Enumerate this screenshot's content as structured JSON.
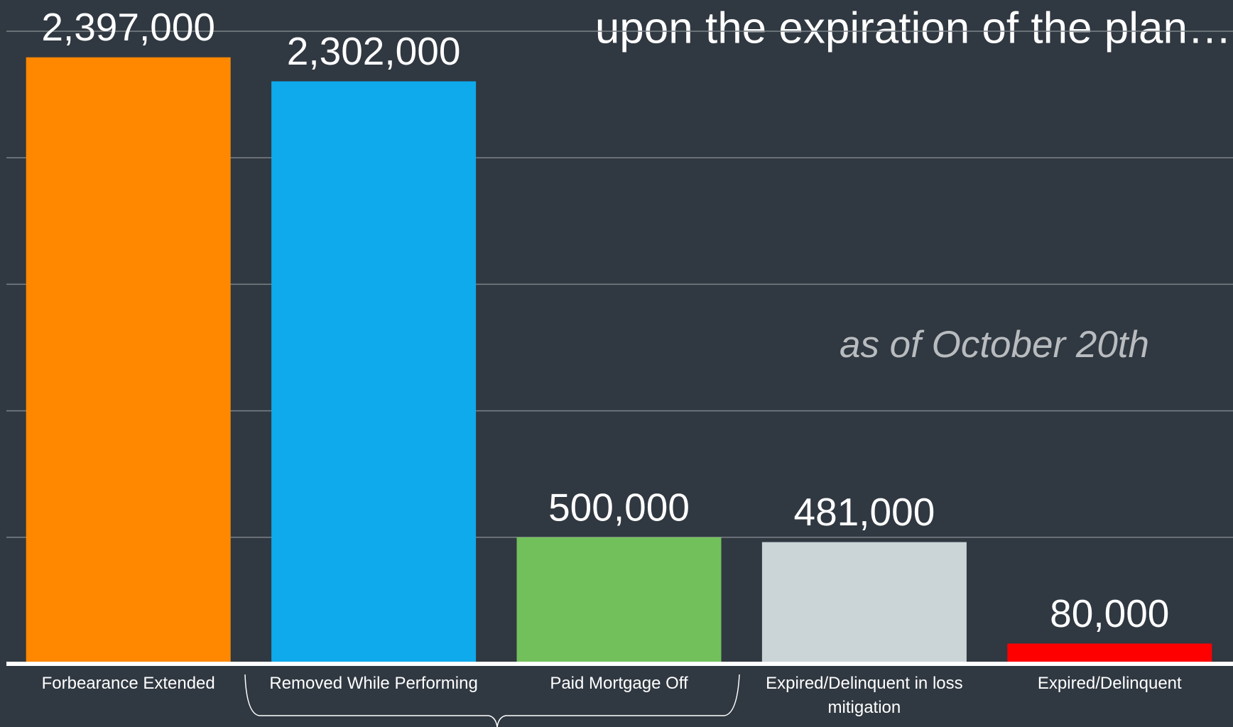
{
  "chart_data": {
    "type": "bar",
    "title": "upon the expiration of the plan…",
    "subtitle": "as of October 20th",
    "categories": [
      "Forbearance Extended",
      "Removed While Performing",
      "Paid Mortgage Off",
      "Expired/Delinquent in loss mitigation",
      "Expired/Delinquent"
    ],
    "values": [
      2397000,
      2302000,
      500000,
      481000,
      80000
    ],
    "value_labels": [
      "2,397,000",
      "2,302,000",
      "500,000",
      "481,000",
      "80,000"
    ],
    "colors": [
      "#ff8800",
      "#0eaaec",
      "#72c05b",
      "#cbd5d8",
      "#ff0000"
    ],
    "ylim": [
      0,
      2500000
    ],
    "yticks": [
      0,
      500000,
      1000000,
      1500000,
      2000000,
      2500000
    ],
    "grid": true
  }
}
